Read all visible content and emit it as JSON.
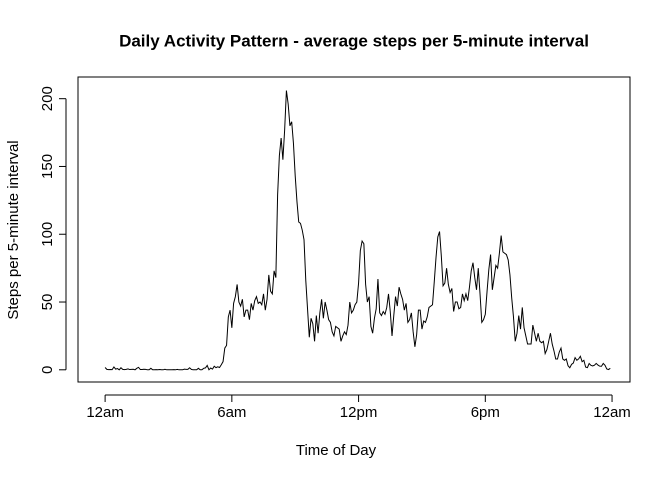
{
  "chart_data": {
    "type": "line",
    "title": "Daily Activity Pattern - average steps per 5-minute interval",
    "xlabel": "Time of Day",
    "ylabel": "Steps per 5-minute interval",
    "color": "#000000",
    "x": [
      0,
      5,
      10,
      15,
      20,
      25,
      30,
      35,
      40,
      45,
      50,
      55,
      60,
      65,
      70,
      75,
      80,
      85,
      90,
      95,
      100,
      105,
      110,
      115,
      120,
      125,
      130,
      135,
      140,
      145,
      150,
      155,
      160,
      165,
      170,
      175,
      180,
      185,
      190,
      195,
      200,
      205,
      210,
      215,
      220,
      225,
      230,
      235,
      240,
      245,
      250,
      255,
      260,
      265,
      270,
      275,
      280,
      285,
      290,
      295,
      300,
      305,
      310,
      315,
      320,
      325,
      330,
      335,
      340,
      345,
      350,
      355,
      360,
      365,
      370,
      375,
      380,
      385,
      390,
      395,
      400,
      405,
      410,
      415,
      420,
      425,
      430,
      435,
      440,
      445,
      450,
      455,
      460,
      465,
      470,
      475,
      480,
      485,
      490,
      495,
      500,
      505,
      510,
      515,
      520,
      525,
      530,
      535,
      540,
      545,
      550,
      555,
      560,
      565,
      570,
      575,
      580,
      585,
      590,
      595,
      600,
      605,
      610,
      615,
      620,
      625,
      630,
      635,
      640,
      645,
      650,
      655,
      660,
      665,
      670,
      675,
      680,
      685,
      690,
      695,
      700,
      705,
      710,
      715,
      720,
      725,
      730,
      735,
      740,
      745,
      750,
      755,
      760,
      765,
      770,
      775,
      780,
      785,
      790,
      795,
      800,
      805,
      810,
      815,
      820,
      825,
      830,
      835,
      840,
      845,
      850,
      855,
      860,
      865,
      870,
      875,
      880,
      885,
      890,
      895,
      900,
      905,
      910,
      915,
      920,
      925,
      930,
      935,
      940,
      945,
      950,
      955,
      960,
      965,
      970,
      975,
      980,
      985,
      990,
      995,
      1000,
      1005,
      1010,
      1015,
      1020,
      1025,
      1030,
      1035,
      1040,
      1045,
      1050,
      1055,
      1060,
      1065,
      1070,
      1075,
      1080,
      1085,
      1090,
      1095,
      1100,
      1105,
      1110,
      1115,
      1120,
      1125,
      1130,
      1135,
      1140,
      1145,
      1150,
      1155,
      1160,
      1165,
      1170,
      1175,
      1180,
      1185,
      1190,
      1195,
      1200,
      1205,
      1210,
      1215,
      1220,
      1225,
      1230,
      1235,
      1240,
      1245,
      1250,
      1255,
      1260,
      1265,
      1270,
      1275,
      1280,
      1285,
      1290,
      1295,
      1300,
      1305,
      1310,
      1315,
      1320,
      1325,
      1330,
      1335,
      1340,
      1345,
      1350,
      1355,
      1360,
      1365,
      1370,
      1375,
      1380,
      1385,
      1390,
      1395,
      1400,
      1405,
      1410,
      1415,
      1420,
      1425,
      1430,
      1435
    ],
    "values": [
      1.7,
      0.3,
      0.1,
      0.2,
      0.1,
      2.1,
      0.5,
      0.9,
      0,
      1.5,
      0.3,
      0.1,
      0.3,
      0.7,
      0.2,
      0.3,
      0.4,
      0,
      1.1,
      1.8,
      0.2,
      0.2,
      0.4,
      0.3,
      0,
      0,
      1.1,
      0,
      0,
      0.1,
      0,
      0.2,
      0,
      0,
      0.4,
      0,
      0,
      0,
      0,
      0.1,
      0,
      0.3,
      0,
      0,
      0,
      0.5,
      0.3,
      0.3,
      1.5,
      0.3,
      0,
      0,
      0,
      1.1,
      0,
      0,
      1.1,
      1.4,
      3.2,
      0,
      1.3,
      0.5,
      2.6,
      1.6,
      2.2,
      1.7,
      3.7,
      6,
      16,
      18,
      39,
      44,
      31,
      49,
      54,
      63,
      50,
      47,
      52,
      39,
      44,
      44,
      37,
      49,
      44,
      51,
      54,
      49,
      50,
      48,
      56,
      44,
      52,
      70,
      58,
      56,
      73,
      68,
      129,
      158,
      171,
      155,
      177,
      206,
      196,
      180,
      183,
      167,
      143,
      124,
      109,
      108,
      103,
      96,
      66,
      45,
      24,
      38,
      34,
      21,
      40,
      27,
      42,
      52,
      38,
      50,
      44,
      37,
      35,
      28,
      25,
      32,
      31,
      30,
      21,
      25,
      28,
      26,
      33,
      50,
      42,
      44,
      48,
      50,
      64,
      88,
      95,
      93,
      63,
      50,
      54,
      32,
      27,
      38,
      45,
      67,
      42,
      40,
      43,
      41,
      46,
      56,
      43,
      25,
      40,
      54,
      47,
      61,
      56,
      52,
      44,
      49,
      35,
      37,
      42,
      28,
      17,
      26,
      44,
      44,
      30,
      36,
      35,
      39,
      46,
      47,
      48,
      65,
      83,
      98,
      102,
      84,
      62,
      64,
      75,
      63,
      57,
      60,
      43,
      50,
      50,
      45,
      46,
      56,
      51,
      56,
      51,
      61,
      73,
      79,
      68,
      59,
      75,
      56,
      35,
      37,
      41,
      58,
      74,
      85,
      59,
      68,
      77,
      75,
      86,
      99,
      87,
      86,
      85,
      81,
      70,
      53,
      39,
      21,
      27,
      40,
      30,
      46,
      31,
      25,
      19,
      19,
      19,
      33,
      27,
      21,
      27,
      21,
      20,
      21,
      12,
      15,
      21,
      27,
      19,
      14,
      8,
      8,
      13,
      16,
      8,
      7,
      8,
      3,
      1.5,
      4,
      5,
      9,
      7,
      8,
      10,
      6,
      7,
      2,
      1.6,
      4.6,
      3.3,
      2.8,
      3.4,
      4.7,
      3.5,
      2.7,
      2.6,
      4.7,
      3.3,
      0.6,
      0.2,
      1.1
    ],
    "xlim": [
      -77,
      1491
    ],
    "xticks": [
      {
        "value": 0,
        "label": "12am"
      },
      {
        "value": 360,
        "label": "6am"
      },
      {
        "value": 720,
        "label": "12pm"
      },
      {
        "value": 1080,
        "label": "6pm"
      },
      {
        "value": 1440,
        "label": "12am"
      }
    ],
    "ylim": [
      -9,
      216
    ],
    "yticks": [
      0,
      50,
      100,
      150,
      200
    ]
  }
}
